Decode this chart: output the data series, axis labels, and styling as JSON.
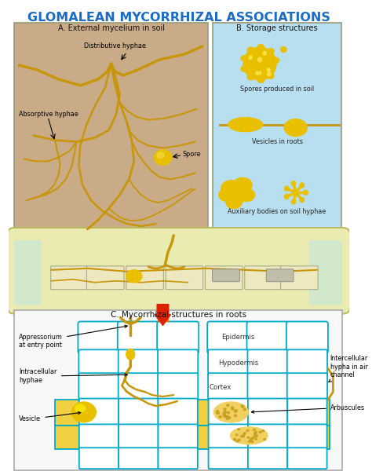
{
  "title": "GLOMALEAN MYCORRHIZAL ASSOCIATIONS",
  "title_color": "#1a6cc8",
  "title_fontsize": 11.5,
  "bg_color": "#ffffff",
  "panel_A_title": "A. External mycelium in soil",
  "panel_B_title": "B. Storage structures",
  "panel_C_title": "C. Mycorrhizal structures in roots",
  "panel_A_bg": "#c9ab88",
  "panel_B_bg": "#b8dff0",
  "panel_middle_bg": "#eaebb0",
  "panel_middle_inner": "#c8e8d8",
  "hyphae_color": "#c8960a",
  "hyphae_dark": "#b07800",
  "cell_border_color": "#00aacc",
  "cell_fill_color": "#ffffff",
  "spore_color": "#e8c000",
  "spore_inner": "#f0d840",
  "arrow_red": "#dd2200",
  "arrow_orange": "#f08000",
  "label_fontsize": 6.0,
  "subtitle_fontsize": 7.0,
  "annot_fontsize": 5.8
}
